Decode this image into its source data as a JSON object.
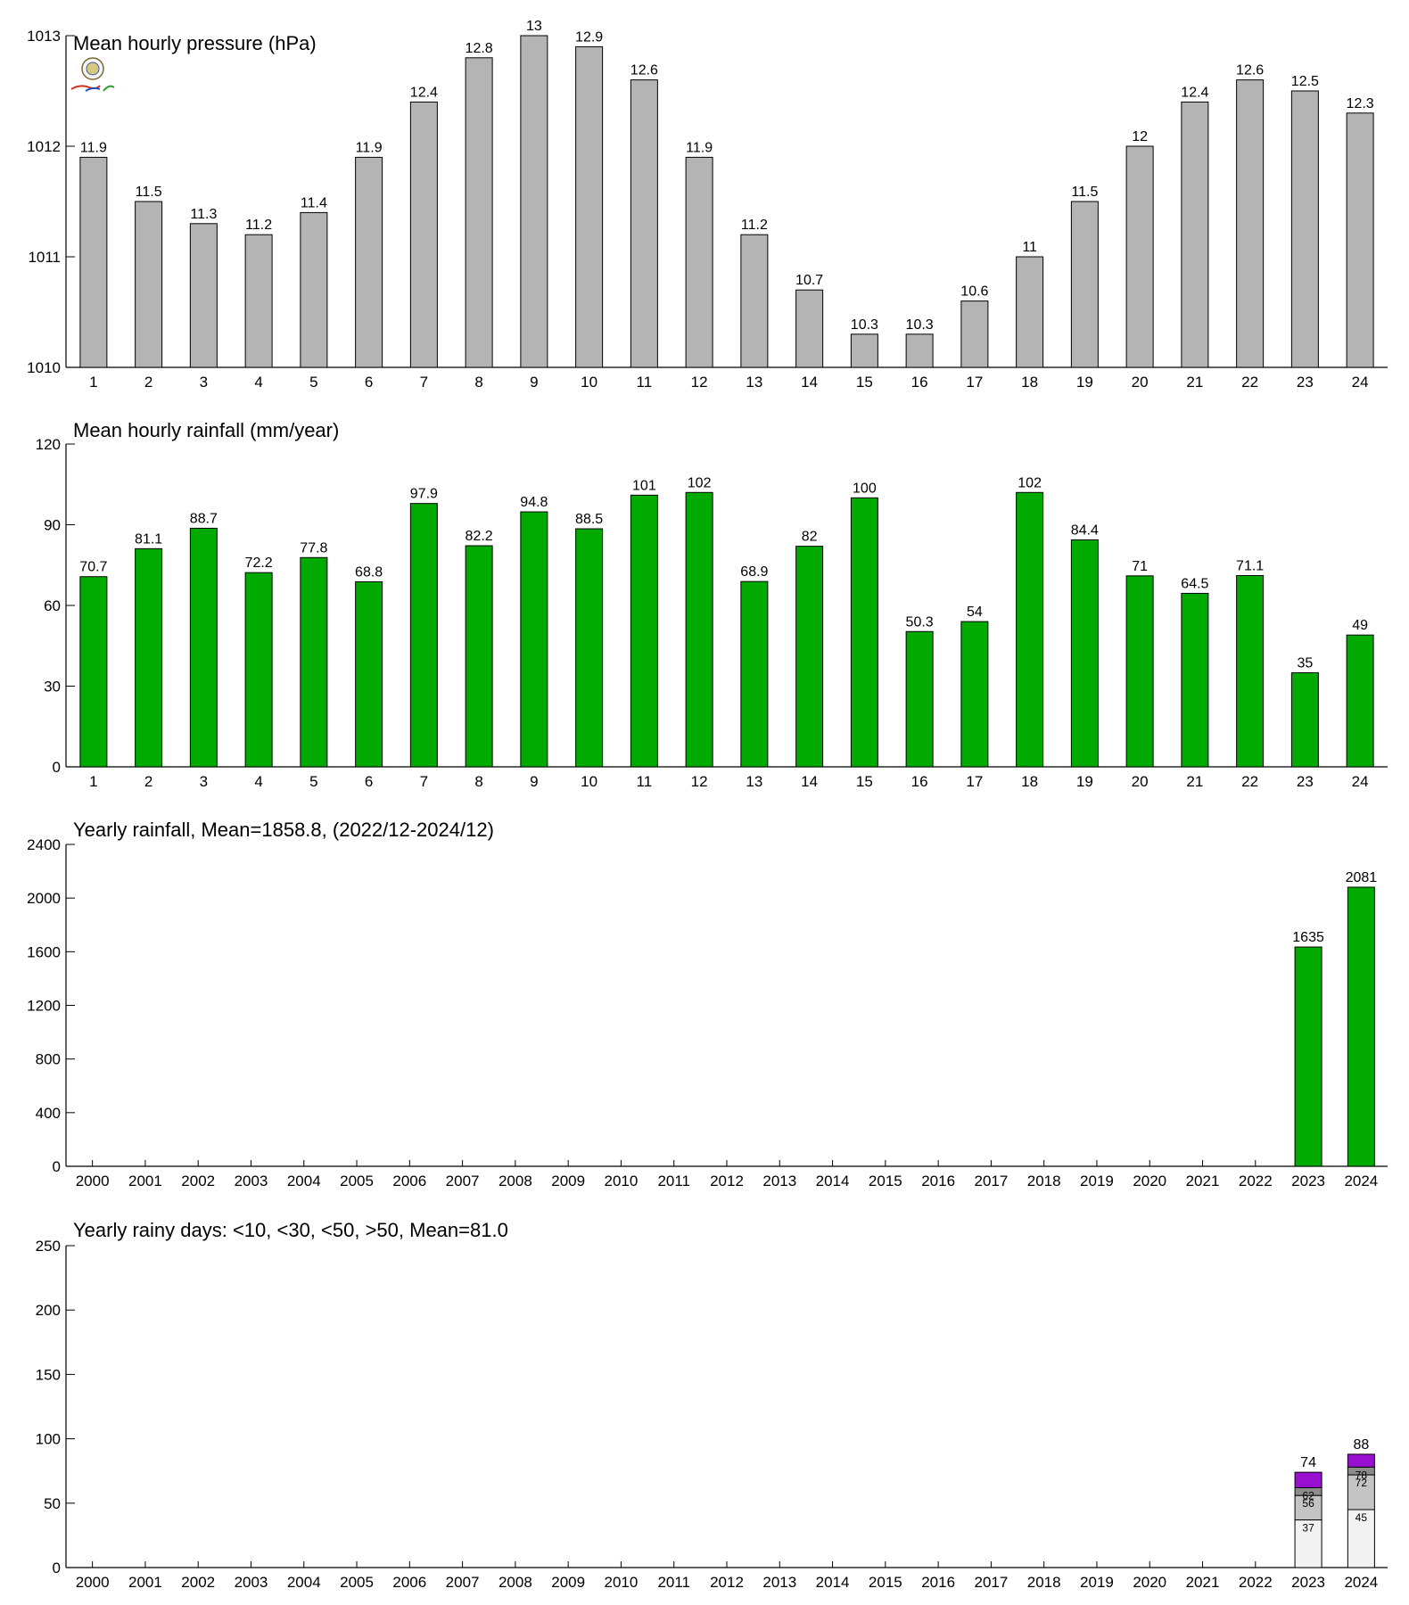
{
  "chart_data": [
    {
      "type": "bar",
      "title": "Mean hourly pressure (hPa)",
      "categories": [
        "1",
        "2",
        "3",
        "4",
        "5",
        "6",
        "7",
        "8",
        "9",
        "10",
        "11",
        "12",
        "13",
        "14",
        "15",
        "16",
        "17",
        "18",
        "19",
        "20",
        "21",
        "22",
        "23",
        "24"
      ],
      "values": [
        1011.9,
        1011.5,
        1011.3,
        1011.2,
        1011.4,
        1011.9,
        1012.4,
        1012.8,
        1013.0,
        1012.9,
        1012.6,
        1011.9,
        1011.2,
        1010.7,
        1010.3,
        1010.3,
        1010.6,
        1011.0,
        1011.5,
        1012.0,
        1012.4,
        1012.6,
        1012.5,
        1012.3
      ],
      "labels": [
        "11.9",
        "11.5",
        "11.3",
        "11.2",
        "11.4",
        "11.9",
        "12.4",
        "12.8",
        "13",
        "12.9",
        "12.6",
        "11.9",
        "11.2",
        "10.7",
        "10.3",
        "10.3",
        "10.6",
        "11",
        "11.5",
        "12",
        "12.4",
        "12.6",
        "12.5",
        "12.3"
      ],
      "ylim": [
        1010,
        1013
      ],
      "yticks": [
        "1010",
        "1011",
        "1012",
        "1013"
      ],
      "bar_color": "#b4b4b4"
    },
    {
      "type": "bar",
      "title": "Mean hourly rainfall (mm/year)",
      "categories": [
        "1",
        "2",
        "3",
        "4",
        "5",
        "6",
        "7",
        "8",
        "9",
        "10",
        "11",
        "12",
        "13",
        "14",
        "15",
        "16",
        "17",
        "18",
        "19",
        "20",
        "21",
        "22",
        "23",
        "24"
      ],
      "values": [
        70.7,
        81.1,
        88.7,
        72.2,
        77.8,
        68.8,
        97.9,
        82.2,
        94.8,
        88.5,
        101,
        102,
        68.9,
        82,
        100,
        50.3,
        54,
        102,
        84.4,
        71,
        64.5,
        71.1,
        35,
        49
      ],
      "labels": [
        "70.7",
        "81.1",
        "88.7",
        "72.2",
        "77.8",
        "68.8",
        "97.9",
        "82.2",
        "94.8",
        "88.5",
        "101",
        "102",
        "68.9",
        "82",
        "100",
        "50.3",
        "54",
        "102",
        "84.4",
        "71",
        "64.5",
        "71.1",
        "35",
        "49"
      ],
      "ylim": [
        0,
        120
      ],
      "yticks": [
        "0",
        "30",
        "60",
        "90",
        "120"
      ],
      "bar_color": "#00aa00"
    },
    {
      "type": "bar",
      "title": "Yearly rainfall, Mean=1858.8, (2022/12-2024/12)",
      "categories": [
        "2000",
        "2001",
        "2002",
        "2003",
        "2004",
        "2005",
        "2006",
        "2007",
        "2008",
        "2009",
        "2010",
        "2011",
        "2012",
        "2013",
        "2014",
        "2015",
        "2016",
        "2017",
        "2018",
        "2019",
        "2020",
        "2021",
        "2022",
        "2023",
        "2024"
      ],
      "values": [
        null,
        null,
        null,
        null,
        null,
        null,
        null,
        null,
        null,
        null,
        null,
        null,
        null,
        null,
        null,
        null,
        null,
        null,
        null,
        null,
        null,
        null,
        null,
        1635,
        2081
      ],
      "labels": [
        "",
        "",
        "",
        "",
        "",
        "",
        "",
        "",
        "",
        "",
        "",
        "",
        "",
        "",
        "",
        "",
        "",
        "",
        "",
        "",
        "",
        "",
        "",
        "1635",
        "2081"
      ],
      "ylim": [
        0,
        2400
      ],
      "yticks": [
        "0",
        "400",
        "800",
        "1200",
        "1600",
        "2000",
        "2400"
      ],
      "bar_color": "#00aa00"
    },
    {
      "type": "bar",
      "title": "Yearly rainy days: <10, <30, <50, >50, Mean=81.0",
      "categories": [
        "2000",
        "2001",
        "2002",
        "2003",
        "2004",
        "2005",
        "2006",
        "2007",
        "2008",
        "2009",
        "2010",
        "2011",
        "2012",
        "2013",
        "2014",
        "2015",
        "2016",
        "2017",
        "2018",
        "2019",
        "2020",
        "2021",
        "2022",
        "2023",
        "2024"
      ],
      "stacks": [
        {
          "category": "2023",
          "levels": [
            37,
            56,
            62,
            74
          ],
          "labels": [
            "37",
            "56",
            "62",
            "74"
          ]
        },
        {
          "category": "2024",
          "levels": [
            45,
            72,
            78,
            88
          ],
          "labels": [
            "45",
            "72",
            "78",
            "88"
          ]
        }
      ],
      "series_colors": [
        "#f2f2f2",
        "#c4c4c4",
        "#8c8c8c",
        "#9a10d0"
      ],
      "ylim": [
        0,
        250
      ],
      "yticks": [
        "0",
        "50",
        "100",
        "150",
        "200",
        "250"
      ]
    }
  ]
}
